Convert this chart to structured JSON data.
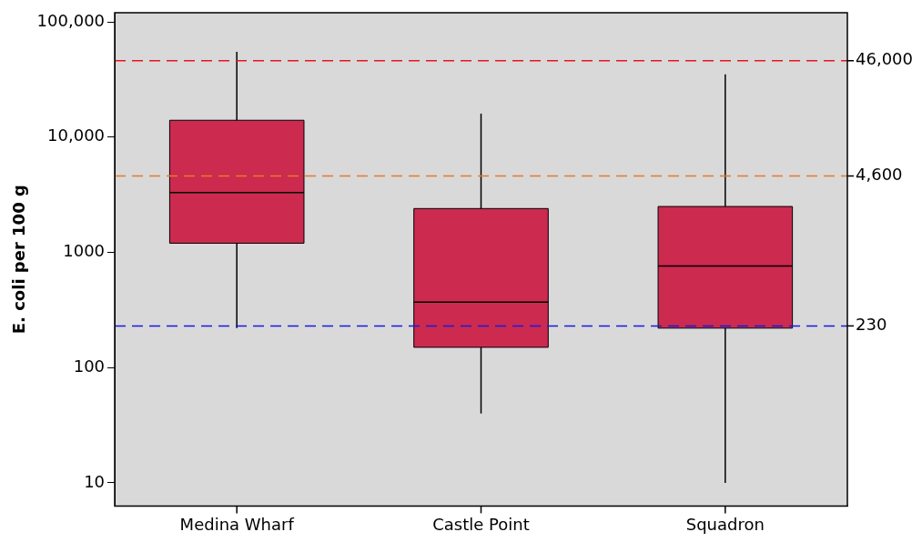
{
  "chart_data": {
    "type": "box",
    "ylabel": "E. coli per 100 g",
    "categories": [
      "Medina Wharf",
      "Castle Point",
      "Squadron"
    ],
    "color": "#cc2a4f",
    "boxes": [
      {
        "low": 220,
        "q1": 1200,
        "median": 3300,
        "q3": 14000,
        "high": 55000
      },
      {
        "low": 40,
        "q1": 150,
        "median": 370,
        "q3": 2400,
        "high": 16000
      },
      {
        "low": 10,
        "q1": 220,
        "median": 760,
        "q3": 2500,
        "high": 35000
      }
    ],
    "log": "y",
    "ylim": [
      6.3,
      120000
    ],
    "yticks": [
      10,
      100,
      1000,
      {
        "value": 10000,
        "label": "10,000"
      },
      {
        "value": 100000,
        "label": "100,000"
      }
    ],
    "ref_lines": [
      {
        "axis": "y",
        "value": 46000,
        "label": "46,000",
        "color": "#e8141e",
        "line_style": "dashed"
      },
      {
        "axis": "y",
        "value": 4600,
        "label": "4,600",
        "color": "#e87a2a",
        "line_style": "dashed"
      },
      {
        "axis": "y",
        "value": 230,
        "label": "230",
        "color": "#1a1ae0",
        "line_style": "dashed"
      }
    ],
    "grid": false,
    "legend": false
  }
}
